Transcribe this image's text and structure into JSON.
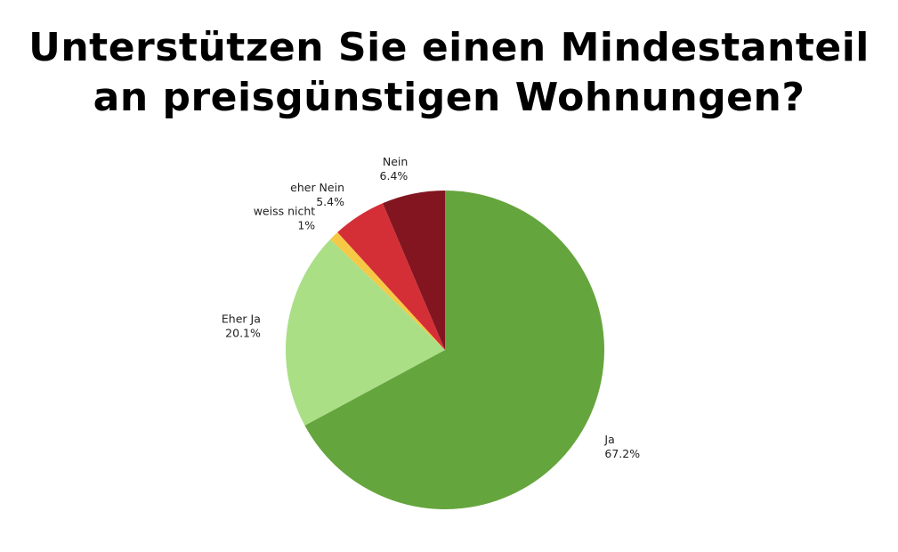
{
  "chart_data": {
    "type": "pie",
    "title_lines": [
      "Unterstützen Sie einen Mindestanteil",
      "an preisgünstigen Wohnungen?"
    ],
    "slices": [
      {
        "label": "Ja",
        "value": 67.2,
        "value_label": "67.2%",
        "color": "#65a53d"
      },
      {
        "label": "Eher Ja",
        "value": 20.1,
        "value_label": "20.1%",
        "color": "#aadf86"
      },
      {
        "label": "weiss nicht",
        "value": 1.0,
        "value_label": "1%",
        "color": "#f7c845"
      },
      {
        "label": "eher Nein",
        "value": 5.4,
        "value_label": "5.4%",
        "color": "#d42f37"
      },
      {
        "label": "Nein",
        "value": 6.4,
        "value_label": "6.4%",
        "color": "#821520"
      }
    ],
    "start": "top",
    "direction": "clockwise",
    "legend": "none"
  }
}
